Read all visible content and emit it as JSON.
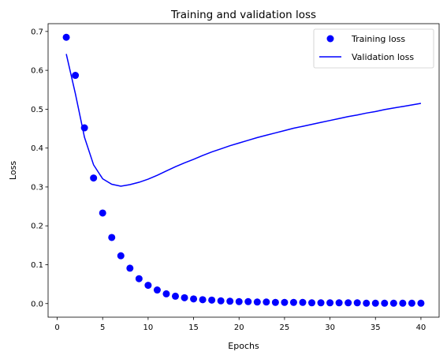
{
  "chart_data": {
    "type": "line",
    "title": "Training and validation loss",
    "xlabel": "Epochs",
    "ylabel": "Loss",
    "xlim": [
      -1.0,
      42.0
    ],
    "ylim": [
      -0.035,
      0.72
    ],
    "xticks": [
      0,
      5,
      10,
      15,
      20,
      25,
      30,
      35,
      40
    ],
    "yticks": [
      0.0,
      0.1,
      0.2,
      0.3,
      0.4,
      0.5,
      0.6,
      0.7
    ],
    "ytick_labels": [
      "0.0",
      "0.1",
      "0.2",
      "0.3",
      "0.4",
      "0.5",
      "0.6",
      "0.7"
    ],
    "grid": false,
    "legend_position": "top-right",
    "series": [
      {
        "name": "Training loss",
        "style": "scatter",
        "color": "#0000ff",
        "x": [
          1,
          2,
          3,
          4,
          5,
          6,
          7,
          8,
          9,
          10,
          11,
          12,
          13,
          14,
          15,
          16,
          17,
          18,
          19,
          20,
          21,
          22,
          23,
          24,
          25,
          26,
          27,
          28,
          29,
          30,
          31,
          32,
          33,
          34,
          35,
          36,
          37,
          38,
          39,
          40
        ],
        "y": [
          0.685,
          0.587,
          0.452,
          0.323,
          0.233,
          0.17,
          0.123,
          0.091,
          0.064,
          0.047,
          0.035,
          0.025,
          0.019,
          0.015,
          0.012,
          0.01,
          0.009,
          0.007,
          0.006,
          0.005,
          0.005,
          0.004,
          0.004,
          0.003,
          0.003,
          0.003,
          0.003,
          0.002,
          0.002,
          0.002,
          0.002,
          0.002,
          0.002,
          0.001,
          0.001,
          0.001,
          0.001,
          0.001,
          0.001,
          0.001
        ]
      },
      {
        "name": "Validation loss",
        "style": "line",
        "color": "#0000ff",
        "x": [
          1,
          2,
          3,
          4,
          5,
          6,
          7,
          8,
          9,
          10,
          11,
          12,
          13,
          14,
          15,
          16,
          17,
          18,
          19,
          20,
          21,
          22,
          23,
          24,
          25,
          26,
          27,
          28,
          29,
          30,
          31,
          32,
          33,
          34,
          35,
          36,
          37,
          38,
          39,
          40
        ],
        "y": [
          0.642,
          0.54,
          0.428,
          0.357,
          0.321,
          0.307,
          0.302,
          0.306,
          0.312,
          0.32,
          0.33,
          0.341,
          0.352,
          0.362,
          0.371,
          0.381,
          0.39,
          0.398,
          0.406,
          0.413,
          0.42,
          0.427,
          0.433,
          0.439,
          0.445,
          0.451,
          0.456,
          0.461,
          0.466,
          0.471,
          0.476,
          0.481,
          0.485,
          0.49,
          0.494,
          0.499,
          0.503,
          0.507,
          0.511,
          0.515
        ]
      }
    ]
  }
}
